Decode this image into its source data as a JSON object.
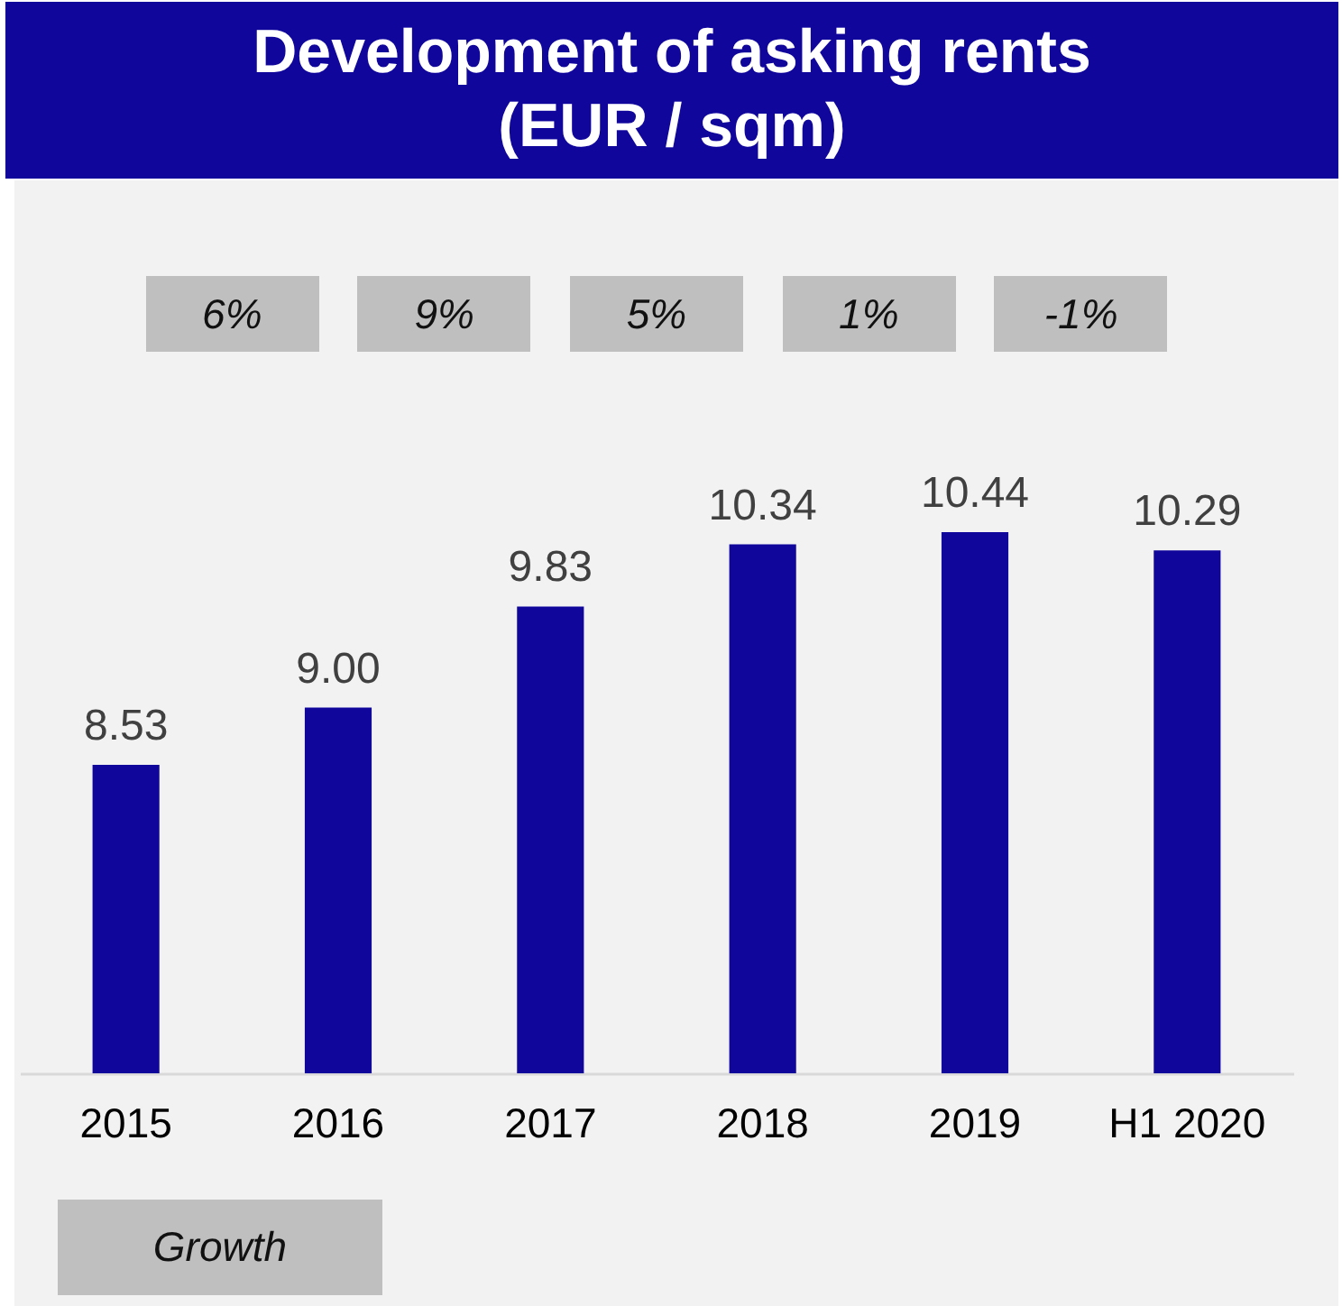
{
  "chart_data": {
    "type": "bar",
    "title": "Development of asking rents (EUR / sqm)",
    "categories": [
      "2015",
      "2016",
      "2017",
      "2018",
      "2019",
      "H1 2020"
    ],
    "values": [
      8.53,
      9.0,
      9.83,
      10.34,
      10.44,
      10.29
    ],
    "value_labels": [
      "8.53",
      "9.00",
      "9.83",
      "10.34",
      "10.44",
      "10.29"
    ],
    "color": "#10069c",
    "ylim": [
      6,
      10.44
    ],
    "annotations": [
      "6%",
      "9%",
      "5%",
      "1%",
      "-1%",
      "Growth"
    ]
  }
}
